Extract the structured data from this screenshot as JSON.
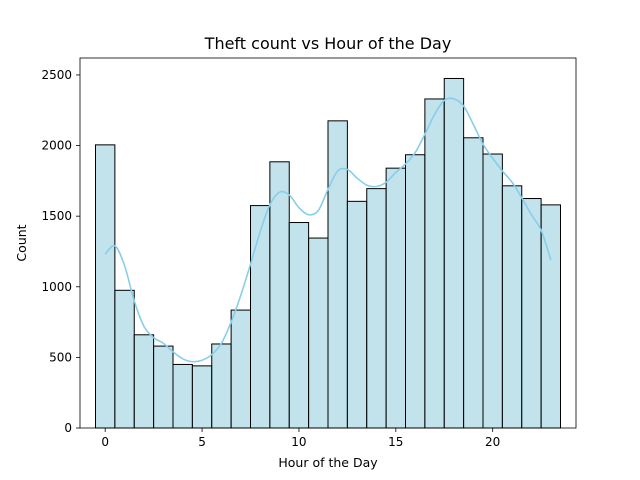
{
  "chart_data": {
    "type": "bar",
    "title": "Theft count vs Hour of the Day",
    "xlabel": "Hour of the Day",
    "ylabel": "Count",
    "xlim": [
      -1.3,
      24.3
    ],
    "ylim": [
      0,
      2620
    ],
    "grid": false,
    "x": [
      0,
      1,
      2,
      3,
      4,
      5,
      6,
      7,
      8,
      9,
      10,
      11,
      12,
      13,
      14,
      15,
      16,
      17,
      18,
      19,
      20,
      21,
      22,
      23
    ],
    "values": [
      2005,
      975,
      660,
      580,
      450,
      440,
      595,
      835,
      1575,
      1885,
      1455,
      1345,
      2175,
      1605,
      1695,
      1840,
      1935,
      2330,
      2475,
      2055,
      1940,
      1715,
      1625,
      1580
    ],
    "xticks": [
      0,
      5,
      10,
      15,
      20
    ],
    "yticks": [
      0,
      500,
      1000,
      1500,
      2000,
      2500
    ],
    "bar_color": "#add8e6",
    "bar_edge_color": "#000000",
    "kde": {
      "color": "#87ceeb",
      "x": [
        0,
        0.5,
        1,
        1.5,
        2,
        2.5,
        3,
        3.5,
        4,
        4.5,
        5,
        5.5,
        6,
        6.5,
        7,
        7.5,
        8,
        8.5,
        9,
        9.5,
        10,
        10.5,
        11,
        11.5,
        12,
        12.5,
        13,
        13.5,
        14,
        14.5,
        15,
        15.5,
        16,
        16.5,
        17,
        17.5,
        18,
        18.5,
        19,
        19.5,
        20,
        20.5,
        21,
        21.5,
        22,
        22.5,
        23
      ],
      "y": [
        1230,
        1290,
        1150,
        900,
        720,
        640,
        600,
        540,
        490,
        470,
        480,
        520,
        600,
        750,
        940,
        1160,
        1390,
        1580,
        1670,
        1650,
        1560,
        1510,
        1540,
        1690,
        1820,
        1830,
        1770,
        1720,
        1710,
        1740,
        1810,
        1870,
        1950,
        2080,
        2220,
        2320,
        2330,
        2280,
        2150,
        2010,
        1910,
        1820,
        1740,
        1630,
        1510,
        1400,
        1190
      ]
    }
  }
}
